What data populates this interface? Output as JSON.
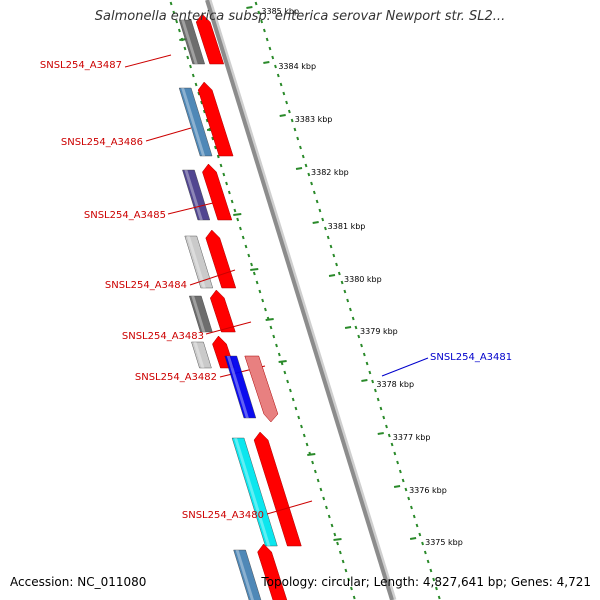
{
  "title": "Salmonella enterica subsp. enterica serovar Newport str. SL2...",
  "footer": {
    "accession": "Accession: NC_011080",
    "summary": "Topology: circular; Length: 4,827,641 bp; Genes: 4,721"
  },
  "colors": {
    "backbone": "#8c8c8c",
    "tick": "#2a8a2a",
    "label_left": "#cc0000",
    "label_right": "#0000cc",
    "cds_forward": "#ff0000",
    "cds_reverse": "#e88080"
  },
  "ruler": [
    {
      "label": "3385 kbp"
    },
    {
      "label": "3384 kbp"
    },
    {
      "label": "3383 kbp"
    },
    {
      "label": "3382 kbp"
    },
    {
      "label": "3381 kbp"
    },
    {
      "label": "3380 kbp"
    },
    {
      "label": "3379 kbp"
    },
    {
      "label": "3378 kbp"
    },
    {
      "label": "3377 kbp"
    },
    {
      "label": "3376 kbp"
    },
    {
      "label": "3375 kbp"
    }
  ],
  "genes": [
    {
      "name": "SNSL254_A3487",
      "side": "left",
      "color": "#666666"
    },
    {
      "name": "SNSL254_A3486",
      "side": "left",
      "color": "#4682b4"
    },
    {
      "name": "SNSL254_A3485",
      "side": "left",
      "color": "#483d8b"
    },
    {
      "name": "SNSL254_A3484",
      "side": "left",
      "color": "#c8c8c8"
    },
    {
      "name": "SNSL254_A3483",
      "side": "left",
      "color": "#666666"
    },
    {
      "name": "SNSL254_A3482",
      "side": "left",
      "color": "#c8c8c8"
    },
    {
      "name": "SNSL254_A3481",
      "side": "right",
      "color": "#0000ee"
    },
    {
      "name": "SNSL254_A3480",
      "side": "left",
      "color": "#00e5ee"
    },
    {
      "name": "",
      "side": "left",
      "color": "#4682b4"
    }
  ]
}
